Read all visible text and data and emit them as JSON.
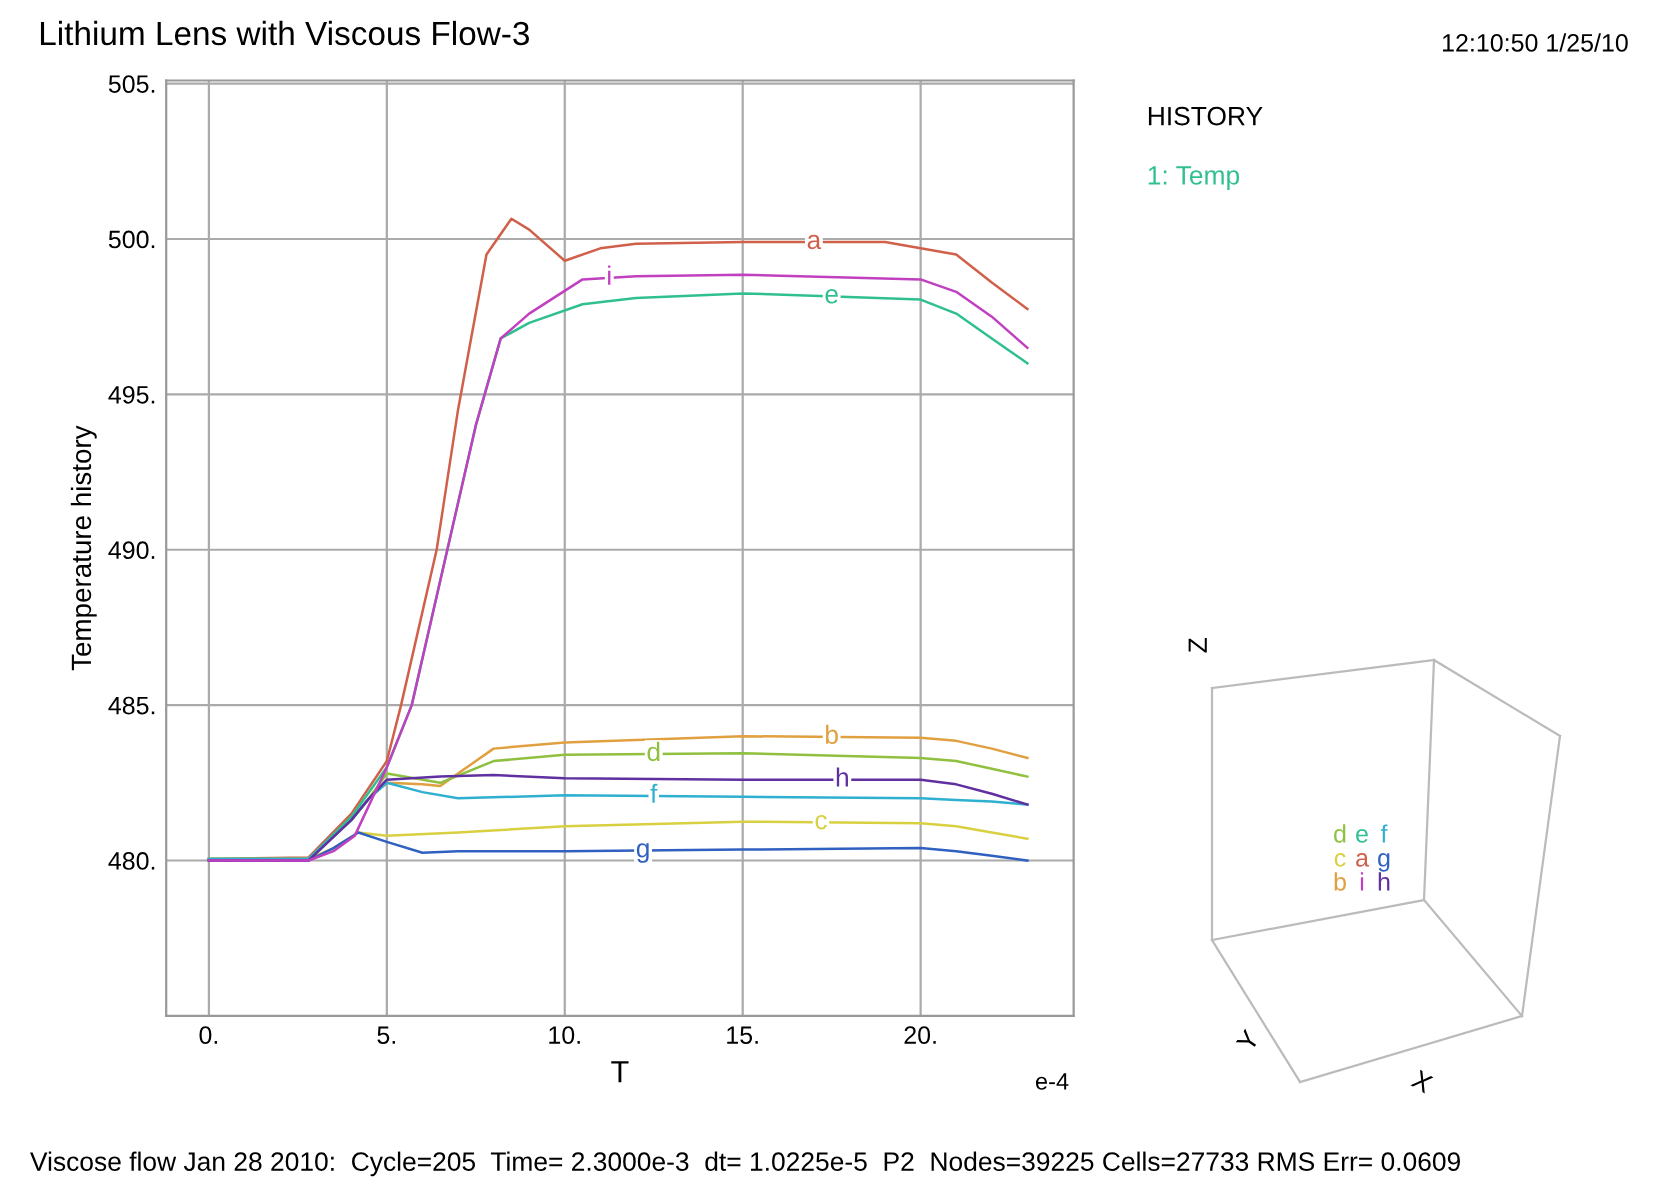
{
  "chart_data": {
    "type": "line",
    "title": "Lithium Lens with Viscous Flow-3",
    "xlabel": "T",
    "ylabel": "Temperature history",
    "xlim": [
      -1.2,
      24.3
    ],
    "ylim": [
      475,
      505.1
    ],
    "xticks": [
      {
        "value": 0,
        "label": "0."
      },
      {
        "value": 5,
        "label": "5."
      },
      {
        "value": 10,
        "label": "10."
      },
      {
        "value": 15,
        "label": "15."
      },
      {
        "value": 20,
        "label": "20."
      }
    ],
    "yticks": [
      {
        "value": 480,
        "label": "480."
      },
      {
        "value": 485,
        "label": "485."
      },
      {
        "value": 490,
        "label": "490."
      },
      {
        "value": 495,
        "label": "495."
      },
      {
        "value": 500,
        "label": "500."
      },
      {
        "value": 505,
        "label": "505."
      }
    ],
    "grid": true,
    "legend": false,
    "marker": "none",
    "line_style": "solid",
    "annotations": [
      "12:10:50 1/25/10",
      "HISTORY",
      "1: Temp",
      "e-4",
      "Viscose flow Jan 28 2010:  Cycle=205  Time= 2.3000e-3  dt= 1.0225e-5  P2  Nodes=39225 Cells=27733 RMS Err= 0.0609",
      "Z",
      "Y",
      "X"
    ],
    "series": [
      {
        "name": "a",
        "color": "#d0604a",
        "x": [
          0,
          2.8,
          4,
          5,
          5.4,
          6,
          6.4,
          7,
          7.8,
          8.5,
          9,
          10,
          11,
          12,
          15,
          19,
          20,
          21,
          22,
          23
        ],
        "values": [
          480.05,
          480.1,
          481.5,
          483.2,
          485,
          488,
          490,
          494.5,
          499.5,
          500.65,
          500.3,
          499.3,
          499.7,
          499.85,
          499.9,
          499.9,
          499.7,
          499.5,
          498.6,
          497.75
        ]
      },
      {
        "name": "b",
        "color": "#e0a040",
        "x": [
          0,
          2.8,
          4,
          4.5,
          5,
          6,
          6.5,
          7,
          8,
          10,
          15,
          20,
          21,
          22,
          23
        ],
        "values": [
          480.05,
          480.05,
          481.3,
          482,
          482.5,
          482.45,
          482.4,
          482.8,
          483.6,
          483.8,
          484.0,
          483.95,
          483.85,
          483.6,
          483.3
        ]
      },
      {
        "name": "c",
        "color": "#d8d040",
        "x": [
          0,
          2.8,
          3.5,
          4.2,
          5,
          7,
          10,
          15,
          20,
          21,
          22,
          23
        ],
        "values": [
          480.05,
          480.05,
          480.4,
          480.9,
          480.8,
          480.9,
          481.1,
          481.25,
          481.2,
          481.1,
          480.9,
          480.7
        ]
      },
      {
        "name": "d",
        "color": "#90c040",
        "x": [
          0,
          2.8,
          4,
          4.5,
          5,
          6.5,
          8,
          10,
          15,
          20,
          21,
          22,
          23
        ],
        "values": [
          480.05,
          480.05,
          481.3,
          482,
          482.8,
          482.5,
          483.2,
          483.4,
          483.45,
          483.3,
          483.2,
          482.95,
          482.7
        ]
      },
      {
        "name": "e",
        "color": "#30c090",
        "x": [
          0,
          2.8,
          4,
          5,
          5.7,
          6.7,
          7.5,
          8.2,
          9,
          10.5,
          12,
          15,
          20,
          21,
          22,
          23
        ],
        "values": [
          480.05,
          480.05,
          481.4,
          483,
          485,
          490,
          494,
          496.8,
          497.3,
          497.9,
          498.1,
          498.25,
          498.05,
          497.6,
          496.8,
          496.0
        ]
      },
      {
        "name": "f",
        "color": "#30b0d0",
        "x": [
          0,
          2.8,
          4,
          4.5,
          5,
          6,
          7,
          10,
          15,
          20,
          21,
          22,
          23
        ],
        "values": [
          480.05,
          480.05,
          481.3,
          482,
          482.5,
          482.2,
          482.0,
          482.1,
          482.05,
          482.0,
          481.95,
          481.9,
          481.8
        ]
      },
      {
        "name": "g",
        "color": "#3060c0",
        "x": [
          0,
          2.8,
          3.5,
          4.2,
          5,
          6,
          7,
          10,
          15,
          20,
          21,
          22,
          23
        ],
        "values": [
          480.0,
          480.0,
          480.4,
          480.9,
          480.6,
          480.25,
          480.3,
          480.3,
          480.35,
          480.4,
          480.3,
          480.15,
          480.0
        ]
      },
      {
        "name": "h",
        "color": "#6030a0",
        "x": [
          0,
          2.8,
          4,
          4.5,
          5,
          6.5,
          8,
          10,
          15,
          20,
          21,
          22,
          23
        ],
        "values": [
          480.0,
          480.0,
          481.3,
          482,
          482.6,
          482.7,
          482.75,
          482.65,
          482.6,
          482.6,
          482.45,
          482.15,
          481.8
        ]
      },
      {
        "name": "i",
        "color": "#c040c0",
        "x": [
          0,
          2.8,
          3.5,
          4.1,
          5,
          5.7,
          6.7,
          7.5,
          8.2,
          9,
          10.5,
          12,
          15,
          20,
          21,
          22,
          23
        ],
        "values": [
          480.0,
          480.0,
          480.3,
          480.8,
          483,
          485,
          490,
          494,
          496.8,
          497.6,
          498.7,
          498.8,
          498.85,
          498.7,
          498.3,
          497.5,
          496.5
        ]
      }
    ]
  }
}
